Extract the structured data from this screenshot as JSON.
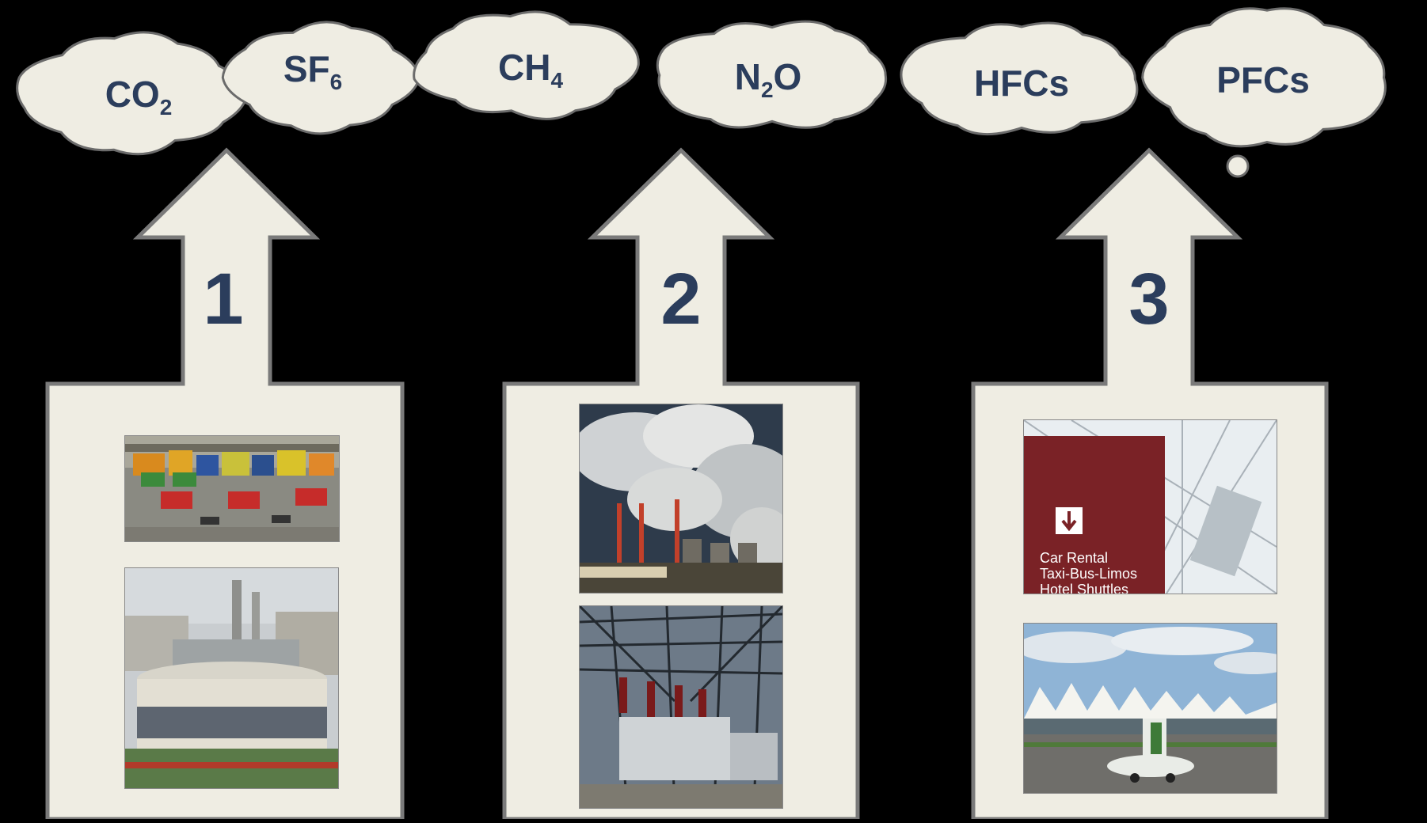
{
  "gases": [
    {
      "base": "CO",
      "sub": "2",
      "tail": ""
    },
    {
      "base": "SF",
      "sub": "6",
      "tail": ""
    },
    {
      "base": "CH",
      "sub": "4",
      "tail": ""
    },
    {
      "base": "N",
      "sub": "2",
      "tail": "O"
    },
    {
      "base": "HFCs",
      "sub": "",
      "tail": ""
    },
    {
      "base": "PFCs",
      "sub": "",
      "tail": ""
    }
  ],
  "scopes": [
    {
      "number": "1",
      "photos": [
        "vehicle-fleet-photo",
        "central-plant-photo"
      ]
    },
    {
      "number": "2",
      "photos": [
        "power-plant-smokestacks-photo",
        "electrical-substation-photo"
      ]
    },
    {
      "number": "3",
      "photos": [
        "signage-photo",
        "airport-terminal-airplane-photo"
      ]
    }
  ],
  "signage": {
    "lines": [
      "Car Rental",
      "Taxi-Bus-Limos",
      "Hotel Shuttles"
    ]
  },
  "colors": {
    "background": "#000000",
    "cloud_fill": "#efede3",
    "cloud_stroke": "#6b6b6b",
    "arrow_fill": "#efede3",
    "arrow_stroke": "#7a7a7a",
    "text": "#2b3d5c"
  }
}
